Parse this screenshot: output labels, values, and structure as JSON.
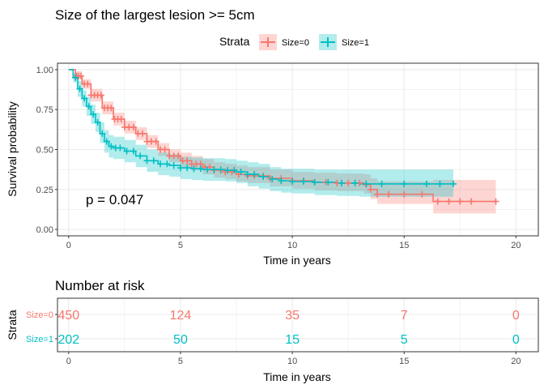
{
  "colors": {
    "size0": "#F8766D",
    "size1": "#00BFC4",
    "grid": "#ebebeb",
    "panel_border": "#333333"
  },
  "chart_data": {
    "type": "line",
    "title": "Size of the largest lesion >= 5cm",
    "xlabel": "Time in years",
    "ylabel": "Survival probability",
    "xlim": [
      -0.5,
      21
    ],
    "ylim": [
      -0.04,
      1.04
    ],
    "x_ticks": [
      0,
      5,
      10,
      15,
      20
    ],
    "y_ticks": [
      0.0,
      0.25,
      0.5,
      0.75,
      1.0
    ],
    "y_tick_labels": [
      "0.00",
      "0.25",
      "0.50",
      "0.75",
      "1.00"
    ],
    "grid": true,
    "legend": {
      "title": "Strata",
      "position": "top",
      "entries": [
        "Size=0",
        "Size=1"
      ]
    },
    "annotation": "p = 0.047",
    "series": [
      {
        "name": "Size=0",
        "points": [
          [
            0,
            1.0
          ],
          [
            0.3,
            0.96
          ],
          [
            0.6,
            0.91
          ],
          [
            1.0,
            0.84
          ],
          [
            1.5,
            0.76
          ],
          [
            2.0,
            0.69
          ],
          [
            2.5,
            0.64
          ],
          [
            3.0,
            0.6
          ],
          [
            3.5,
            0.55
          ],
          [
            4.0,
            0.5
          ],
          [
            4.5,
            0.46
          ],
          [
            5.0,
            0.43
          ],
          [
            5.5,
            0.41
          ],
          [
            6.0,
            0.39
          ],
          [
            6.5,
            0.37
          ],
          [
            7.0,
            0.36
          ],
          [
            7.5,
            0.345
          ],
          [
            8.0,
            0.335
          ],
          [
            9.0,
            0.32
          ],
          [
            10.0,
            0.305
          ],
          [
            11.0,
            0.295
          ],
          [
            12.0,
            0.29
          ],
          [
            13.2,
            0.28
          ],
          [
            13.5,
            0.25
          ],
          [
            13.8,
            0.22
          ],
          [
            14.0,
            0.22
          ],
          [
            16.2,
            0.22
          ],
          [
            16.3,
            0.175
          ],
          [
            19.1,
            0.175
          ]
        ],
        "ci_upper": [
          [
            0,
            1.0
          ],
          [
            0.3,
            0.99
          ],
          [
            0.6,
            0.94
          ],
          [
            1.0,
            0.88
          ],
          [
            1.5,
            0.8
          ],
          [
            2.0,
            0.73
          ],
          [
            2.5,
            0.68
          ],
          [
            3.0,
            0.64
          ],
          [
            3.5,
            0.59
          ],
          [
            4.0,
            0.54
          ],
          [
            4.5,
            0.5
          ],
          [
            5.0,
            0.48
          ],
          [
            5.5,
            0.46
          ],
          [
            6.0,
            0.44
          ],
          [
            6.5,
            0.42
          ],
          [
            7.0,
            0.41
          ],
          [
            7.5,
            0.4
          ],
          [
            8.0,
            0.39
          ],
          [
            9.0,
            0.375
          ],
          [
            10.0,
            0.36
          ],
          [
            11.0,
            0.355
          ],
          [
            12.0,
            0.35
          ],
          [
            13.2,
            0.345
          ],
          [
            13.5,
            0.32
          ],
          [
            13.8,
            0.3
          ],
          [
            14.0,
            0.3
          ],
          [
            16.2,
            0.3
          ],
          [
            16.3,
            0.31
          ],
          [
            19.1,
            0.31
          ]
        ],
        "ci_lower": [
          [
            0,
            1.0
          ],
          [
            0.3,
            0.94
          ],
          [
            0.6,
            0.88
          ],
          [
            1.0,
            0.8
          ],
          [
            1.5,
            0.72
          ],
          [
            2.0,
            0.65
          ],
          [
            2.5,
            0.6
          ],
          [
            3.0,
            0.56
          ],
          [
            3.5,
            0.51
          ],
          [
            4.0,
            0.46
          ],
          [
            4.5,
            0.42
          ],
          [
            5.0,
            0.39
          ],
          [
            5.5,
            0.37
          ],
          [
            6.0,
            0.345
          ],
          [
            6.5,
            0.325
          ],
          [
            7.0,
            0.315
          ],
          [
            7.5,
            0.3
          ],
          [
            8.0,
            0.29
          ],
          [
            9.0,
            0.27
          ],
          [
            10.0,
            0.255
          ],
          [
            11.0,
            0.245
          ],
          [
            12.0,
            0.24
          ],
          [
            13.2,
            0.225
          ],
          [
            13.5,
            0.19
          ],
          [
            13.8,
            0.16
          ],
          [
            14.0,
            0.16
          ],
          [
            16.2,
            0.16
          ],
          [
            16.3,
            0.1
          ],
          [
            19.1,
            0.1
          ]
        ],
        "censor_x": [
          0.35,
          0.45,
          0.55,
          0.7,
          0.85,
          1.0,
          1.15,
          1.3,
          1.45,
          1.6,
          1.75,
          1.9,
          2.05,
          2.2,
          2.35,
          2.5,
          2.7,
          2.9,
          3.1,
          3.3,
          3.5,
          3.7,
          3.9,
          4.1,
          4.3,
          4.5,
          4.7,
          4.9,
          5.1,
          5.3,
          5.5,
          5.7,
          5.9,
          6.1,
          6.3,
          6.5,
          6.8,
          7.0,
          7.3,
          7.6,
          8.0,
          8.3,
          8.7,
          9.0,
          9.5,
          10.0,
          10.5,
          11.0,
          11.5,
          12.0,
          12.5,
          13.0,
          13.3,
          13.5,
          13.8,
          14.3,
          15.0,
          15.8,
          16.5,
          17.0,
          17.5,
          18.0,
          19.1
        ]
      },
      {
        "name": "Size=1",
        "points": [
          [
            0,
            1.0
          ],
          [
            0.2,
            0.95
          ],
          [
            0.4,
            0.88
          ],
          [
            0.6,
            0.82
          ],
          [
            0.8,
            0.77
          ],
          [
            1.0,
            0.72
          ],
          [
            1.2,
            0.67
          ],
          [
            1.4,
            0.6
          ],
          [
            1.6,
            0.55
          ],
          [
            1.8,
            0.52
          ],
          [
            2.0,
            0.51
          ],
          [
            2.5,
            0.49
          ],
          [
            3.0,
            0.46
          ],
          [
            3.5,
            0.43
          ],
          [
            4.0,
            0.41
          ],
          [
            4.5,
            0.4
          ],
          [
            5.0,
            0.385
          ],
          [
            5.5,
            0.38
          ],
          [
            6.0,
            0.375
          ],
          [
            7.0,
            0.37
          ],
          [
            7.5,
            0.36
          ],
          [
            8.0,
            0.345
          ],
          [
            8.5,
            0.33
          ],
          [
            9.0,
            0.315
          ],
          [
            9.5,
            0.305
          ],
          [
            10.0,
            0.3
          ],
          [
            11.0,
            0.295
          ],
          [
            12.0,
            0.29
          ],
          [
            13.0,
            0.285
          ],
          [
            17.2,
            0.285
          ]
        ],
        "ci_upper": [
          [
            0,
            1.0
          ],
          [
            0.2,
            0.98
          ],
          [
            0.4,
            0.93
          ],
          [
            0.6,
            0.87
          ],
          [
            0.8,
            0.83
          ],
          [
            1.0,
            0.78
          ],
          [
            1.2,
            0.73
          ],
          [
            1.4,
            0.67
          ],
          [
            1.6,
            0.62
          ],
          [
            1.8,
            0.59
          ],
          [
            2.0,
            0.58
          ],
          [
            2.5,
            0.56
          ],
          [
            3.0,
            0.53
          ],
          [
            3.5,
            0.5
          ],
          [
            4.0,
            0.48
          ],
          [
            4.5,
            0.47
          ],
          [
            5.0,
            0.455
          ],
          [
            5.5,
            0.45
          ],
          [
            6.0,
            0.445
          ],
          [
            7.0,
            0.44
          ],
          [
            7.5,
            0.43
          ],
          [
            8.0,
            0.42
          ],
          [
            8.5,
            0.41
          ],
          [
            9.0,
            0.39
          ],
          [
            9.5,
            0.38
          ],
          [
            10.0,
            0.38
          ],
          [
            11.0,
            0.375
          ],
          [
            12.0,
            0.375
          ],
          [
            13.0,
            0.375
          ],
          [
            17.2,
            0.375
          ]
        ],
        "ci_lower": [
          [
            0,
            1.0
          ],
          [
            0.2,
            0.92
          ],
          [
            0.4,
            0.83
          ],
          [
            0.6,
            0.77
          ],
          [
            0.8,
            0.71
          ],
          [
            1.0,
            0.66
          ],
          [
            1.2,
            0.61
          ],
          [
            1.4,
            0.54
          ],
          [
            1.6,
            0.48
          ],
          [
            1.8,
            0.45
          ],
          [
            2.0,
            0.44
          ],
          [
            2.5,
            0.42
          ],
          [
            3.0,
            0.39
          ],
          [
            3.5,
            0.36
          ],
          [
            4.0,
            0.34
          ],
          [
            4.5,
            0.33
          ],
          [
            5.0,
            0.315
          ],
          [
            5.5,
            0.31
          ],
          [
            6.0,
            0.305
          ],
          [
            7.0,
            0.3
          ],
          [
            7.5,
            0.29
          ],
          [
            8.0,
            0.27
          ],
          [
            8.5,
            0.255
          ],
          [
            9.0,
            0.24
          ],
          [
            9.5,
            0.23
          ],
          [
            10.0,
            0.225
          ],
          [
            11.0,
            0.215
          ],
          [
            12.0,
            0.21
          ],
          [
            13.0,
            0.205
          ],
          [
            17.2,
            0.205
          ]
        ],
        "censor_x": [
          0.3,
          0.5,
          0.7,
          0.9,
          1.1,
          1.3,
          1.5,
          1.7,
          1.9,
          2.1,
          2.3,
          2.6,
          2.9,
          3.2,
          3.5,
          3.8,
          4.1,
          4.4,
          4.7,
          5.0,
          5.3,
          5.6,
          5.9,
          6.2,
          6.5,
          6.8,
          7.1,
          7.4,
          7.7,
          8.0,
          8.3,
          8.7,
          9.1,
          9.5,
          10.0,
          10.5,
          11.0,
          11.6,
          12.2,
          12.8,
          13.3,
          14.0,
          15.0,
          16.0,
          16.6,
          17.2
        ]
      }
    ],
    "risk_table": {
      "title": "Number at risk",
      "ylabel": "Strata",
      "xlabel": "Time in years",
      "times": [
        0,
        5,
        10,
        15,
        20
      ],
      "rows": [
        {
          "label": "Size=0",
          "values": [
            "450",
            "124",
            "35",
            "7",
            "0"
          ]
        },
        {
          "label": "Size=1",
          "values": [
            "202",
            "50",
            "15",
            "5",
            "0"
          ]
        }
      ]
    }
  }
}
